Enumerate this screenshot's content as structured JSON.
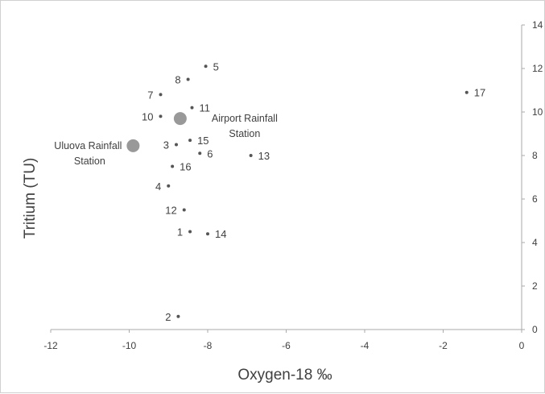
{
  "chart_data": {
    "type": "scatter",
    "xlabel": "Oxygen-18 ‰",
    "ylabel": "Tritium (TU)",
    "xlim": [
      -12,
      0
    ],
    "ylim": [
      0,
      14
    ],
    "x_ticks": [
      "-12",
      "-10",
      "-8",
      "-6",
      "-4",
      "-2",
      "0"
    ],
    "y_ticks": [
      "0",
      "2",
      "4",
      "6",
      "8",
      "10",
      "12",
      "14"
    ],
    "grid": false,
    "y_axis_side": "right",
    "points": [
      {
        "label": "1",
        "x": -8.45,
        "y": 4.5
      },
      {
        "label": "2",
        "x": -8.75,
        "y": 0.6
      },
      {
        "label": "3",
        "x": -8.8,
        "y": 8.5
      },
      {
        "label": "4",
        "x": -9.0,
        "y": 6.6
      },
      {
        "label": "5",
        "x": -8.05,
        "y": 12.1
      },
      {
        "label": "6",
        "x": -8.2,
        "y": 8.1
      },
      {
        "label": "7",
        "x": -9.2,
        "y": 10.8
      },
      {
        "label": "8",
        "x": -8.5,
        "y": 11.5
      },
      {
        "label": "10",
        "x": -9.2,
        "y": 9.8
      },
      {
        "label": "11",
        "x": -8.4,
        "y": 10.2
      },
      {
        "label": "12",
        "x": -8.6,
        "y": 5.5
      },
      {
        "label": "13",
        "x": -6.9,
        "y": 8.0
      },
      {
        "label": "14",
        "x": -8.0,
        "y": 4.4
      },
      {
        "label": "15",
        "x": -8.45,
        "y": 8.7
      },
      {
        "label": "16",
        "x": -8.9,
        "y": 7.5
      },
      {
        "label": "17",
        "x": -1.4,
        "y": 10.9
      }
    ],
    "stations": [
      {
        "name_line1": "Uluova Rainfall",
        "name_line2": "Station",
        "x": -9.9,
        "y": 8.45
      },
      {
        "name_line1": "Airport Rainfall",
        "name_line2": "Station",
        "x": -8.7,
        "y": 9.7
      }
    ],
    "colors": {
      "point": "#555555",
      "station": "#999999",
      "axis": "#aaaaaa",
      "text": "#404040"
    }
  }
}
